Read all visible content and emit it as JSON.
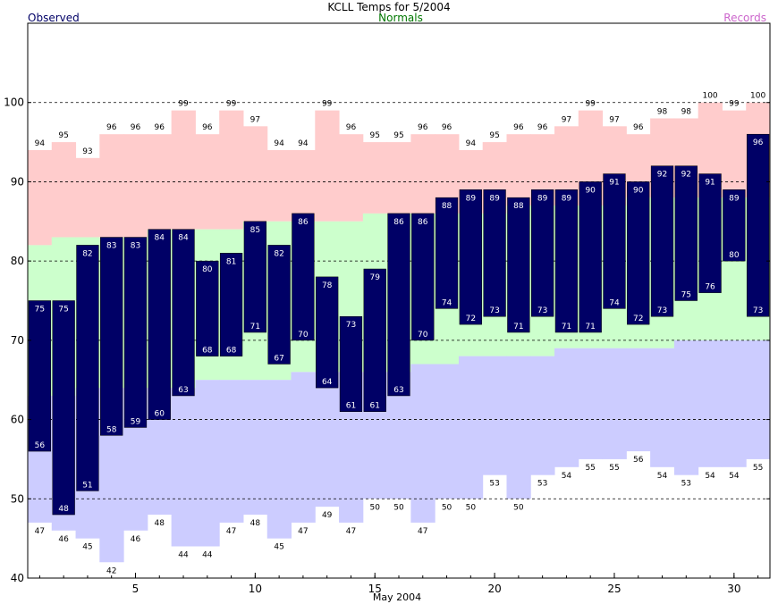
{
  "chart_data": {
    "type": "bar",
    "title": "KCLL Temps for 5/2004",
    "xlabel": "May 2004",
    "ylabel": "",
    "legend": {
      "observed": "Observed",
      "normals": "Normals",
      "records": "Records"
    },
    "colors": {
      "observed": "#000066",
      "observed_label": "#000066",
      "normals_label": "#007700",
      "records_label": "#cc66cc",
      "record_band": "#ffcccc",
      "normal_high_band": "#ccffcc",
      "normal_low_band": "#ccccff",
      "bar_text": "#ffffff",
      "grid": "#000000"
    },
    "ylim": [
      40,
      110
    ],
    "yticks": [
      40,
      50,
      60,
      70,
      80,
      90,
      100
    ],
    "xticks": [
      5,
      10,
      15,
      20,
      25,
      30
    ],
    "days": [
      1,
      2,
      3,
      4,
      5,
      6,
      7,
      8,
      9,
      10,
      11,
      12,
      13,
      14,
      15,
      16,
      17,
      18,
      19,
      20,
      21,
      22,
      23,
      24,
      25,
      26,
      27,
      28,
      29,
      30,
      31
    ],
    "observed_high": [
      75,
      75,
      82,
      83,
      83,
      84,
      84,
      80,
      81,
      85,
      82,
      86,
      78,
      73,
      79,
      86,
      86,
      88,
      89,
      89,
      88,
      89,
      89,
      90,
      91,
      90,
      92,
      92,
      91,
      89,
      96
    ],
    "observed_low": [
      56,
      48,
      51,
      58,
      59,
      60,
      63,
      68,
      68,
      71,
      67,
      70,
      64,
      61,
      61,
      63,
      70,
      74,
      72,
      73,
      71,
      73,
      71,
      71,
      74,
      72,
      73,
      75,
      76,
      80,
      73
    ],
    "record_high": [
      94,
      95,
      93,
      96,
      96,
      96,
      99,
      96,
      99,
      97,
      94,
      94,
      99,
      96,
      95,
      95,
      96,
      96,
      94,
      95,
      96,
      96,
      97,
      99,
      97,
      96,
      98,
      98,
      100,
      99,
      100
    ],
    "record_low": [
      47,
      46,
      45,
      42,
      46,
      48,
      44,
      44,
      47,
      48,
      45,
      47,
      49,
      47,
      50,
      50,
      47,
      50,
      50,
      53,
      50,
      53,
      54,
      55,
      55,
      56,
      54,
      53,
      54,
      54,
      55
    ],
    "normal_high": [
      82,
      83,
      83,
      83,
      83,
      84,
      84,
      84,
      84,
      85,
      85,
      85,
      85,
      85,
      86,
      86,
      86,
      86,
      86,
      86,
      87,
      87,
      87,
      87,
      87,
      88,
      88,
      88,
      88,
      88,
      88
    ],
    "normal_low": [
      63,
      63,
      64,
      64,
      64,
      64,
      64,
      65,
      65,
      65,
      65,
      66,
      66,
      66,
      66,
      66,
      67,
      67,
      68,
      68,
      68,
      68,
      69,
      69,
      69,
      69,
      69,
      70,
      70,
      70,
      70
    ]
  }
}
